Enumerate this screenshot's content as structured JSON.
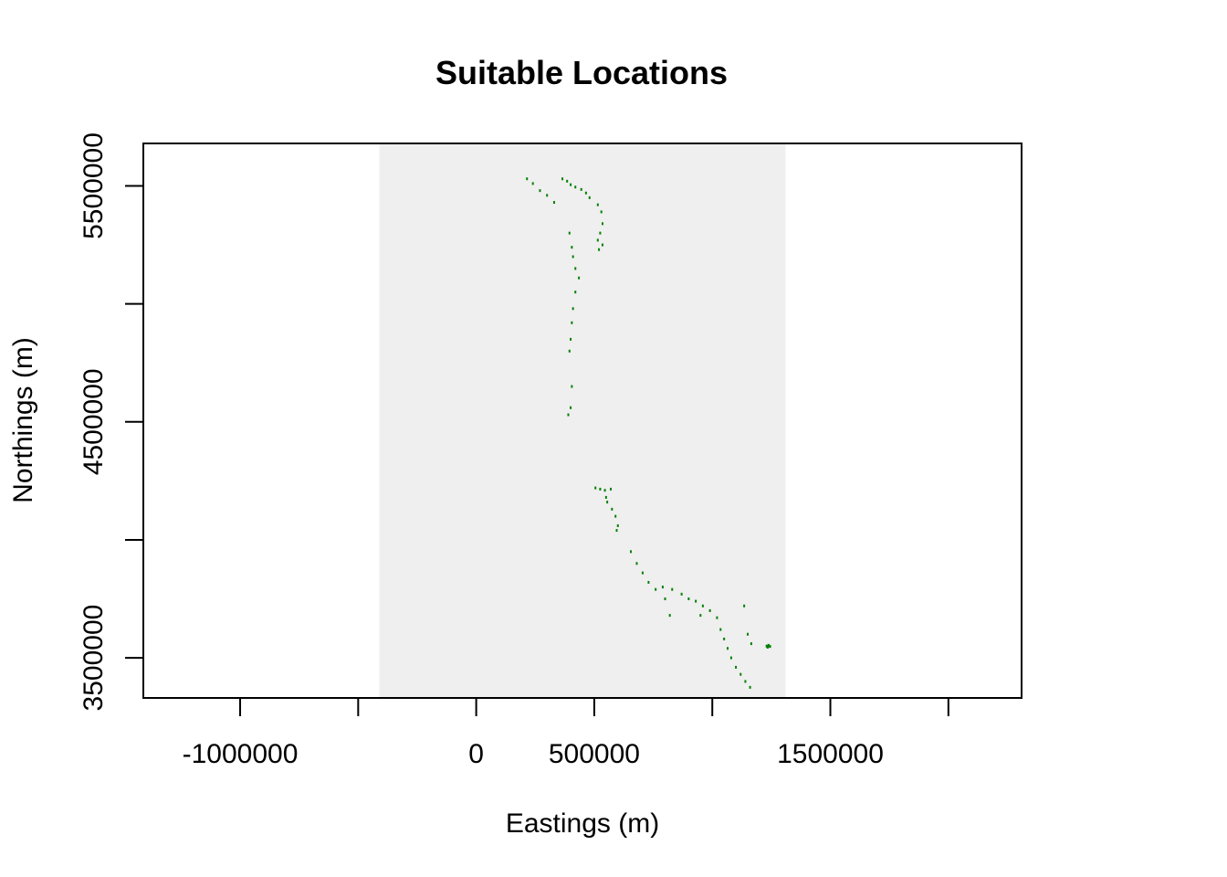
{
  "chart_data": {
    "type": "scatter",
    "title": "Suitable Locations",
    "xlabel": "Eastings (m)",
    "ylabel": "Northings (m)",
    "xlim": [
      -1410000,
      2310000
    ],
    "ylim": [
      3330000,
      5680000
    ],
    "raster_extent": {
      "x": [
        -410000,
        1310000
      ],
      "y": [
        3330000,
        5680000
      ]
    },
    "x_ticks": [
      -1000000,
      -500000,
      0,
      500000,
      1000000,
      1500000,
      2000000
    ],
    "x_tick_labels": [
      "-1000000",
      "",
      "0",
      "500000",
      "",
      "1500000",
      ""
    ],
    "y_ticks": [
      3500000,
      4000000,
      4500000,
      5000000,
      5500000
    ],
    "y_tick_labels": [
      "3500000",
      "",
      "4500000",
      "",
      "5500000"
    ],
    "grid": false,
    "colors": {
      "raster_background": "#efefef",
      "suitable": "#008000",
      "frame": "#000000"
    },
    "series": [
      {
        "values": [
          [
            215000,
            5530000
          ],
          [
            240000,
            5510000
          ],
          [
            270000,
            5480000
          ],
          [
            300000,
            5460000
          ],
          [
            330000,
            5430000
          ],
          [
            365000,
            5530000
          ],
          [
            385000,
            5520000
          ],
          [
            400000,
            5505000
          ],
          [
            420000,
            5495000
          ],
          [
            445000,
            5485000
          ],
          [
            465000,
            5470000
          ],
          [
            480000,
            5450000
          ],
          [
            515000,
            5420000
          ],
          [
            530000,
            5390000
          ],
          [
            535000,
            5340000
          ],
          [
            525000,
            5300000
          ],
          [
            515000,
            5270000
          ],
          [
            535000,
            5250000
          ],
          [
            520000,
            5230000
          ],
          [
            395000,
            5300000
          ],
          [
            405000,
            5240000
          ],
          [
            410000,
            5200000
          ],
          [
            420000,
            5150000
          ],
          [
            435000,
            5110000
          ],
          [
            420000,
            5050000
          ],
          [
            410000,
            4980000
          ],
          [
            405000,
            4920000
          ],
          [
            400000,
            4850000
          ],
          [
            395000,
            4800000
          ],
          [
            405000,
            4650000
          ],
          [
            400000,
            4560000
          ],
          [
            390000,
            4530000
          ],
          [
            505000,
            4220000
          ],
          [
            525000,
            4215000
          ],
          [
            545000,
            4210000
          ],
          [
            570000,
            4215000
          ],
          [
            550000,
            4180000
          ],
          [
            555000,
            4160000
          ],
          [
            575000,
            4130000
          ],
          [
            590000,
            4100000
          ],
          [
            600000,
            4060000
          ],
          [
            595000,
            4040000
          ],
          [
            655000,
            3950000
          ],
          [
            680000,
            3900000
          ],
          [
            705000,
            3860000
          ],
          [
            730000,
            3820000
          ],
          [
            760000,
            3790000
          ],
          [
            790000,
            3800000
          ],
          [
            830000,
            3790000
          ],
          [
            870000,
            3770000
          ],
          [
            900000,
            3750000
          ],
          [
            930000,
            3740000
          ],
          [
            960000,
            3720000
          ],
          [
            990000,
            3700000
          ],
          [
            1020000,
            3670000
          ],
          [
            800000,
            3750000
          ],
          [
            820000,
            3680000
          ],
          [
            950000,
            3680000
          ],
          [
            1035000,
            3620000
          ],
          [
            1050000,
            3580000
          ],
          [
            1065000,
            3540000
          ],
          [
            1080000,
            3500000
          ],
          [
            1100000,
            3460000
          ],
          [
            1120000,
            3430000
          ],
          [
            1140000,
            3400000
          ],
          [
            1160000,
            3375000
          ],
          [
            1150000,
            3600000
          ],
          [
            1165000,
            3560000
          ],
          [
            1230000,
            3550000
          ],
          [
            1240000,
            3550000
          ],
          [
            1235000,
            3545000
          ],
          [
            1245000,
            3548000
          ],
          [
            1238000,
            3553000
          ],
          [
            1233000,
            3547000
          ],
          [
            1135000,
            3720000
          ]
        ]
      }
    ]
  }
}
